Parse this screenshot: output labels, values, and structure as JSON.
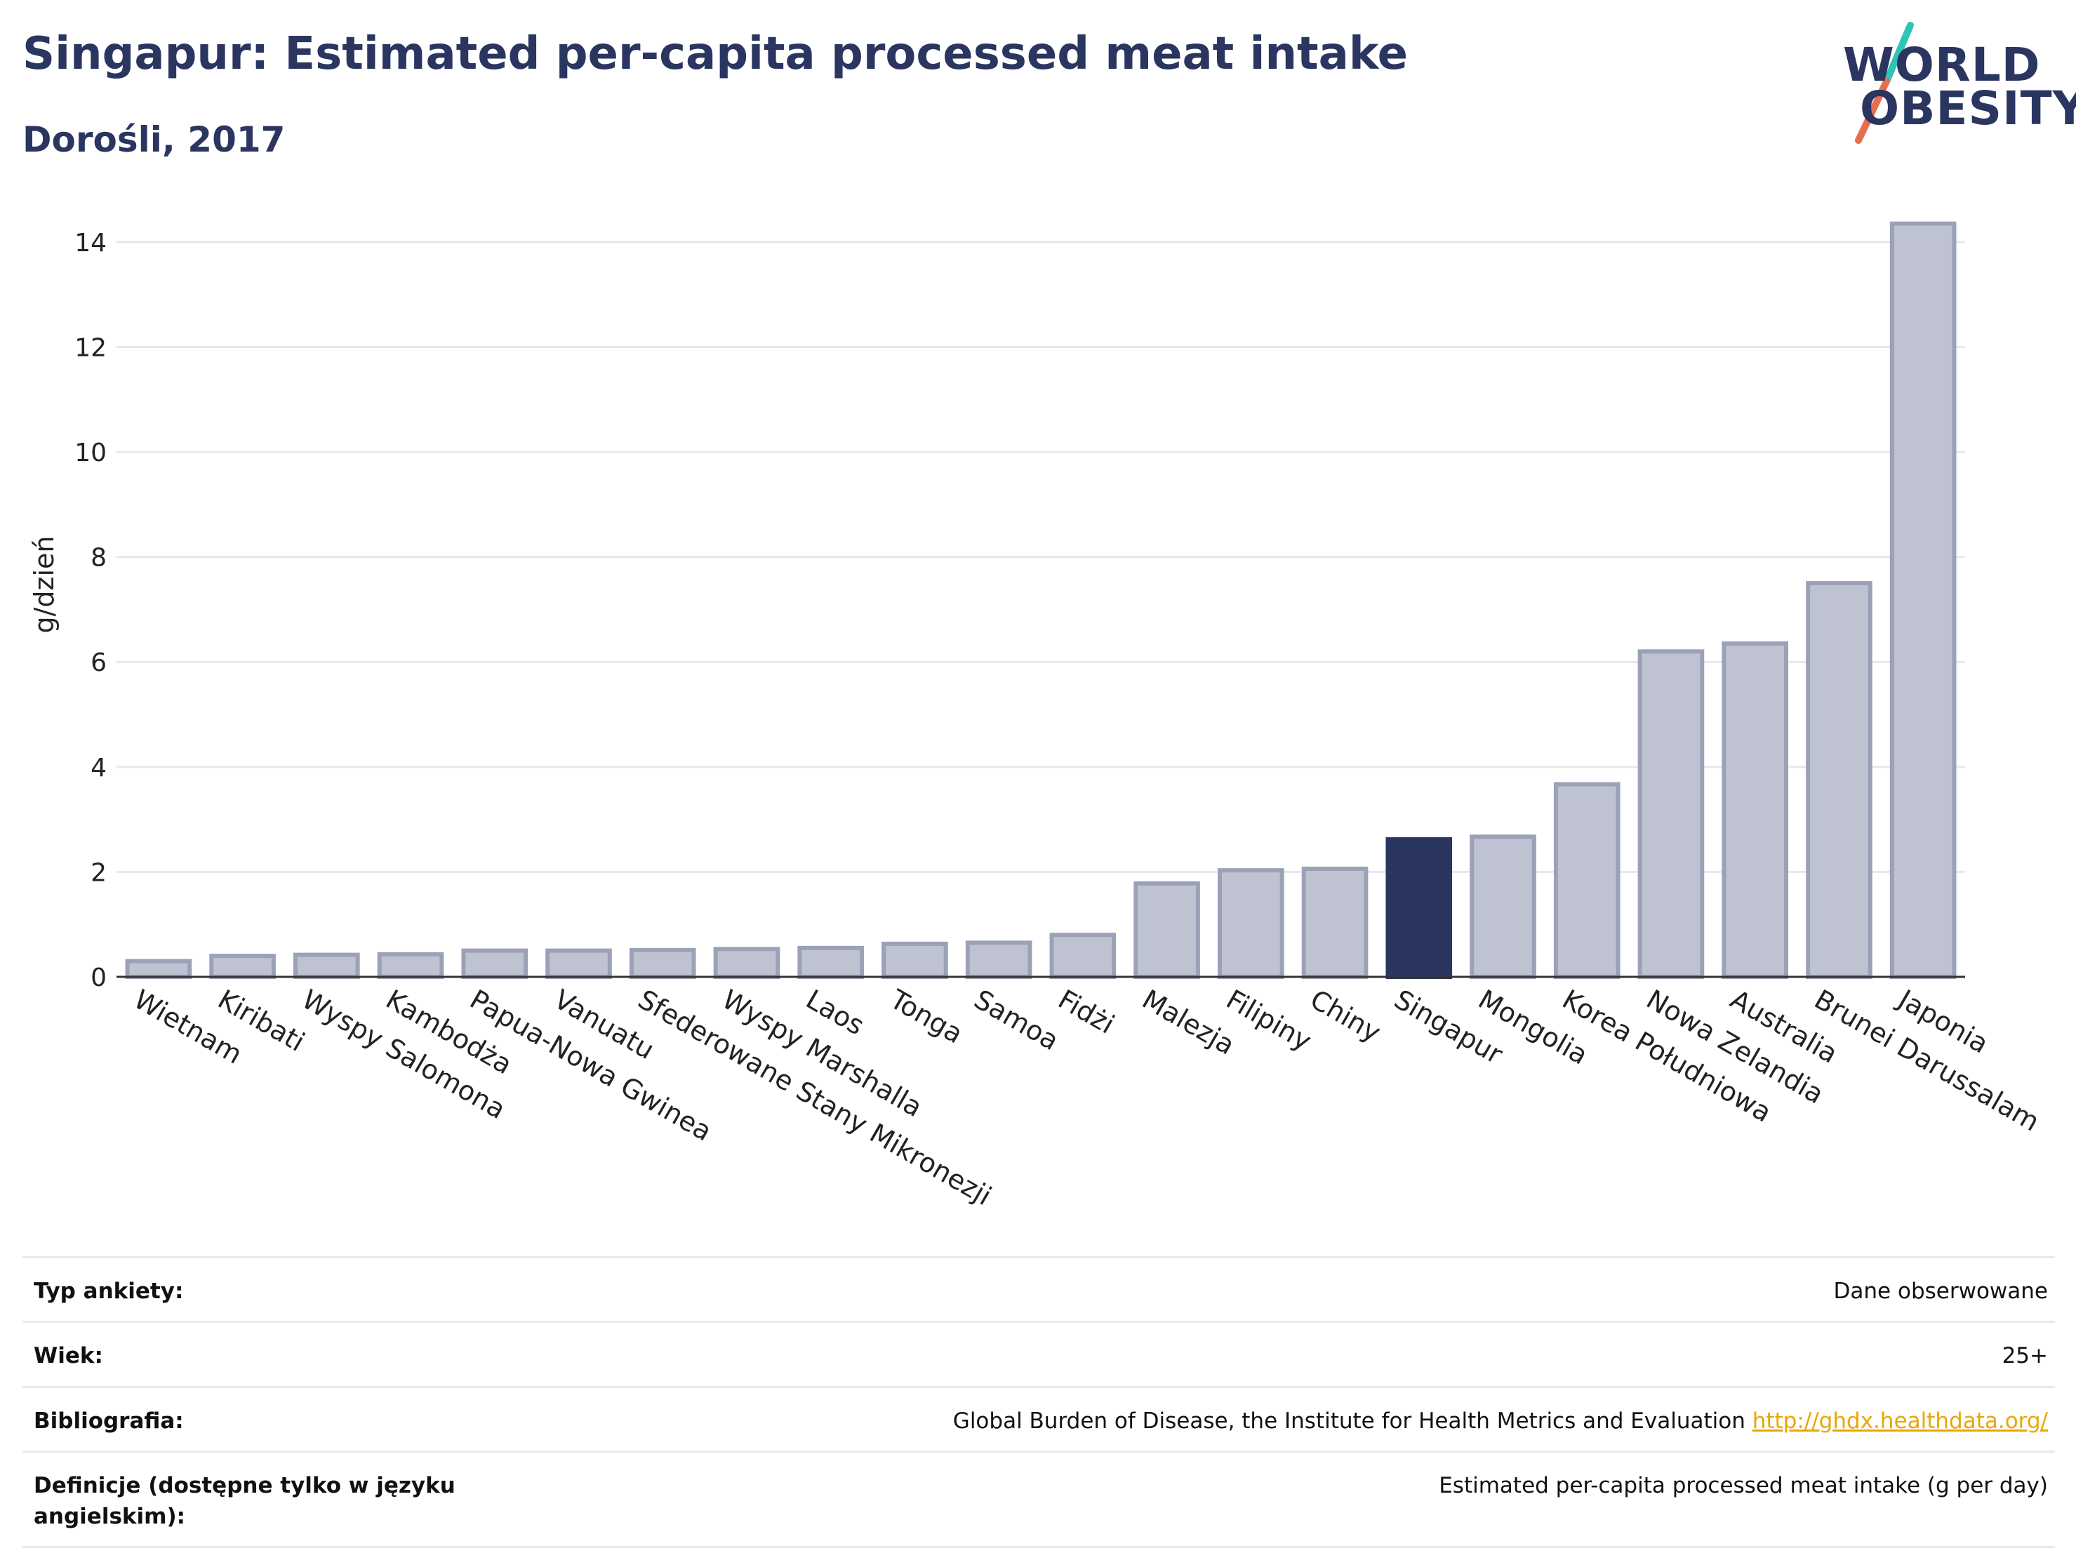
{
  "header": {
    "title": "Singapur: Estimated per-capita processed meat intake",
    "subtitle": "Dorośli, 2017"
  },
  "logo": {
    "line1": "WORLD",
    "line2": "OBESITY",
    "accent1": "#2ec4b6",
    "accent2": "#e76f51"
  },
  "chart_data": {
    "type": "bar",
    "ylabel": "g/dzień",
    "ylim": [
      0,
      14.6
    ],
    "yticks": [
      0,
      2,
      4,
      6,
      8,
      10,
      12,
      14
    ],
    "grid": true,
    "highlight": "Singapur",
    "highlight_color": "#2a3560",
    "bar_color": "#bfc3d1",
    "bar_stroke": "#9ba1b6",
    "categories": [
      "Wietnam",
      "Kiribati",
      "Wyspy Salomona",
      "Kambodża",
      "Papua-Nowa Gwinea",
      "Vanuatu",
      "Sfederowane Stany Mikronezji",
      "Wyspy Marshalla",
      "Laos",
      "Tonga",
      "Samoa",
      "Fidżi",
      "Malezja",
      "Filipiny",
      "Chiny",
      "Singapur",
      "Mongolia",
      "Korea Południowa",
      "Nowa Zelandia",
      "Australia",
      "Brunei Darussalam",
      "Japonia"
    ],
    "values": [
      0.3,
      0.4,
      0.42,
      0.43,
      0.5,
      0.5,
      0.51,
      0.53,
      0.55,
      0.63,
      0.65,
      0.8,
      1.78,
      2.03,
      2.06,
      2.62,
      2.67,
      3.67,
      6.2,
      6.35,
      7.5,
      14.35
    ]
  },
  "table": [
    {
      "label": "Typ ankiety:",
      "value": "Dane obserwowane"
    },
    {
      "label": "Wiek:",
      "value": "25+"
    },
    {
      "label": "Bibliografia:",
      "value": "Global Burden of Disease, the Institute for Health Metrics and Evaluation",
      "link": "http://ghdx.healthdata.org/"
    },
    {
      "label": "Definicje (dostępne tylko w języku angielskim):",
      "value": "Estimated per-capita processed meat intake (g per day)"
    }
  ]
}
